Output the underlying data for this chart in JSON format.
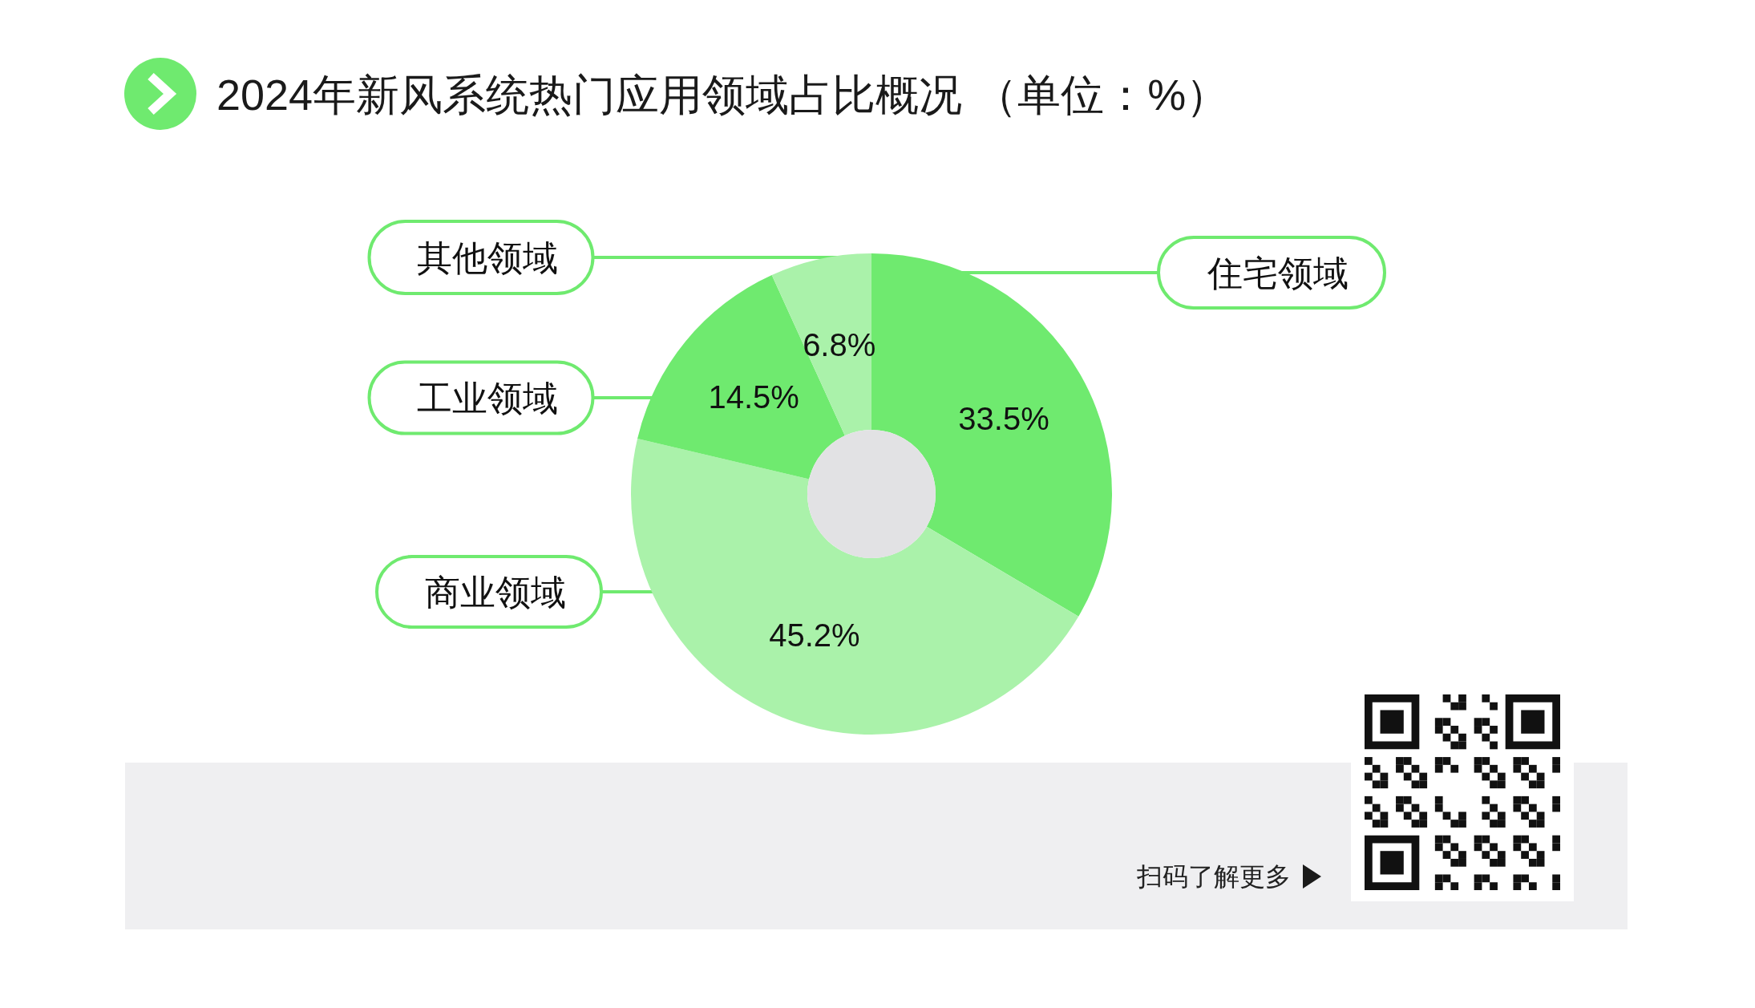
{
  "chart_data": {
    "type": "donut",
    "title": "2024年新风系统热门应用领域占比概况 （单位：%）",
    "categories": [
      "住宅领域",
      "商业领域",
      "工业领域",
      "其他领域"
    ],
    "values": [
      33.5,
      45.2,
      14.5,
      6.8
    ],
    "colors": [
      "#6fea6f",
      "#aaf2aa",
      "#6fea6f",
      "#aaf2aa"
    ],
    "value_labels": [
      "33.5%",
      "45.2%",
      "14.5%",
      "6.8%"
    ],
    "annotations": [
      "扫码了解更多"
    ]
  }
}
